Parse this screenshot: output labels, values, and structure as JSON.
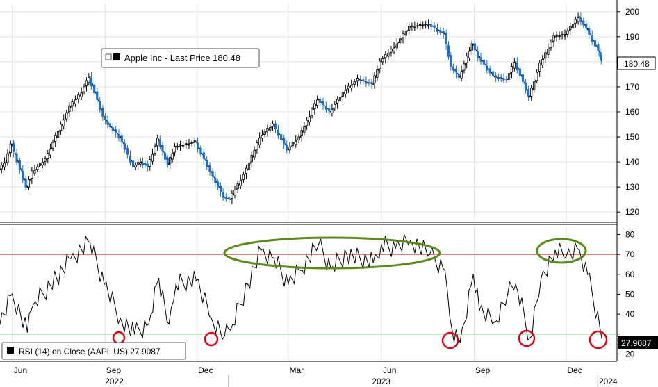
{
  "colors": {
    "background": "#ffffff",
    "line": "#000000",
    "candle_up": "#000000",
    "candle_down": "#1f6fc5",
    "overbought": "#d62728",
    "oversold": "#2ca02c",
    "highlight_high": "#5a8a1a",
    "highlight_low": "#d0021b"
  },
  "price_panel": {
    "legend": "Apple Inc - Last Price 180.48",
    "last_label": "180.48",
    "y_ticks": [
      "120",
      "130",
      "140",
      "150",
      "160",
      "170",
      "180",
      "190",
      "200"
    ],
    "ylim": [
      117,
      203
    ]
  },
  "rsi_panel": {
    "legend": "RSI (14)  on Close (AAPL US) 27.9087",
    "last_label": "27.9087",
    "y_ticks": [
      "20",
      "30",
      "40",
      "50",
      "60",
      "70",
      "80"
    ],
    "ylim": [
      17,
      84
    ],
    "overbought": 70,
    "oversold": 30
  },
  "x_axis": {
    "month_ticks": [
      "Jun",
      "Sep",
      "Dec",
      "Mar",
      "Jun",
      "Sep",
      "Dec"
    ],
    "year_labels": [
      "2022",
      "2023",
      "2024"
    ]
  },
  "chart_data": [
    {
      "type": "line",
      "title": "Apple Inc - Last Price",
      "x_range": [
        "2022-05",
        "2024-01"
      ],
      "ylim": [
        117,
        203
      ],
      "series": [
        {
          "name": "Apple Inc - Last Price",
          "points": [
            [
              "2022-05-20",
              137
            ],
            [
              "2022-05-26",
              140
            ],
            [
              "2022-06-01",
              147
            ],
            [
              "2022-06-16",
              130
            ],
            [
              "2022-06-22",
              136
            ],
            [
              "2022-07-05",
              141
            ],
            [
              "2022-07-15",
              150
            ],
            [
              "2022-07-29",
              162
            ],
            [
              "2022-08-10",
              168
            ],
            [
              "2022-08-17",
              174
            ],
            [
              "2022-08-31",
              158
            ],
            [
              "2022-09-07",
              154
            ],
            [
              "2022-09-16",
              150
            ],
            [
              "2022-09-30",
              138
            ],
            [
              "2022-10-07",
              140
            ],
            [
              "2022-10-14",
              138
            ],
            [
              "2022-10-24",
              149
            ],
            [
              "2022-11-03",
              139
            ],
            [
              "2022-11-10",
              146
            ],
            [
              "2022-11-30",
              148
            ],
            [
              "2022-12-15",
              136
            ],
            [
              "2022-12-28",
              126
            ],
            [
              "2023-01-03",
              125
            ],
            [
              "2023-01-20",
              137
            ],
            [
              "2023-02-02",
              150
            ],
            [
              "2023-02-15",
              155
            ],
            [
              "2023-03-01",
              145
            ],
            [
              "2023-03-13",
              150
            ],
            [
              "2023-03-31",
              165
            ],
            [
              "2023-04-12",
              160
            ],
            [
              "2023-04-28",
              169
            ],
            [
              "2023-05-10",
              173
            ],
            [
              "2023-05-24",
              171
            ],
            [
              "2023-06-01",
              180
            ],
            [
              "2023-06-15",
              186
            ],
            [
              "2023-06-30",
              194
            ],
            [
              "2023-07-19",
              195
            ],
            [
              "2023-08-03",
              191
            ],
            [
              "2023-08-10",
              178
            ],
            [
              "2023-08-18",
              174
            ],
            [
              "2023-08-31",
              187
            ],
            [
              "2023-09-06",
              182
            ],
            [
              "2023-09-21",
              174
            ],
            [
              "2023-10-04",
              173
            ],
            [
              "2023-10-12",
              180
            ],
            [
              "2023-10-26",
              166
            ],
            [
              "2023-11-06",
              179
            ],
            [
              "2023-11-20",
              190
            ],
            [
              "2023-12-01",
              191
            ],
            [
              "2023-12-14",
              198
            ],
            [
              "2023-12-22",
              193
            ],
            [
              "2024-01-03",
              184
            ],
            [
              "2024-01-05",
              180.48
            ]
          ]
        }
      ]
    },
    {
      "type": "line",
      "title": "RSI (14)  on Close (AAPL US)",
      "x_range": [
        "2022-05",
        "2024-01"
      ],
      "ylim": [
        17,
        84
      ],
      "series": [
        {
          "name": "RSI (14)  on Close (AAPL US)",
          "points": [
            [
              "2022-05-20",
              35
            ],
            [
              "2022-06-01",
              50
            ],
            [
              "2022-06-16",
              31
            ],
            [
              "2022-06-22",
              45
            ],
            [
              "2022-07-15",
              58
            ],
            [
              "2022-07-29",
              68
            ],
            [
              "2022-08-17",
              76
            ],
            [
              "2022-08-31",
              55
            ],
            [
              "2022-09-16",
              38
            ],
            [
              "2022-09-30",
              30
            ],
            [
              "2022-10-14",
              35
            ],
            [
              "2022-10-24",
              58
            ],
            [
              "2022-11-03",
              35
            ],
            [
              "2022-11-10",
              55
            ],
            [
              "2022-11-30",
              57
            ],
            [
              "2022-12-15",
              38
            ],
            [
              "2022-12-28",
              29
            ],
            [
              "2023-01-03",
              32
            ],
            [
              "2023-01-20",
              55
            ],
            [
              "2023-02-02",
              72
            ],
            [
              "2023-02-15",
              68
            ],
            [
              "2023-03-01",
              55
            ],
            [
              "2023-03-13",
              62
            ],
            [
              "2023-03-31",
              75
            ],
            [
              "2023-04-12",
              63
            ],
            [
              "2023-04-28",
              70
            ],
            [
              "2023-05-24",
              66
            ],
            [
              "2023-06-01",
              75
            ],
            [
              "2023-06-15",
              73
            ],
            [
              "2023-06-30",
              77
            ],
            [
              "2023-07-19",
              70
            ],
            [
              "2023-08-03",
              62
            ],
            [
              "2023-08-10",
              32
            ],
            [
              "2023-08-18",
              26
            ],
            [
              "2023-08-31",
              60
            ],
            [
              "2023-09-06",
              42
            ],
            [
              "2023-09-21",
              36
            ],
            [
              "2023-10-04",
              50
            ],
            [
              "2023-10-12",
              55
            ],
            [
              "2023-10-26",
              28
            ],
            [
              "2023-11-06",
              58
            ],
            [
              "2023-11-20",
              72
            ],
            [
              "2023-12-01",
              69
            ],
            [
              "2023-12-14",
              72
            ],
            [
              "2023-12-22",
              60
            ],
            [
              "2024-01-03",
              34
            ],
            [
              "2024-01-05",
              27.9087
            ]
          ]
        }
      ],
      "reference_lines": [
        70,
        30
      ]
    }
  ]
}
